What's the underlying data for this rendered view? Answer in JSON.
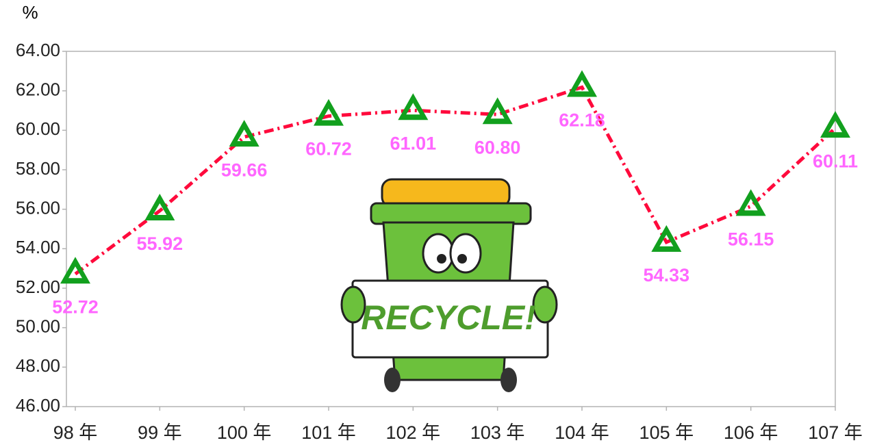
{
  "chart_data": {
    "type": "line",
    "y_label": "%",
    "annotation": "RECYCLE!",
    "categories": [
      "98 年",
      "99 年",
      "100 年",
      "101 年",
      "102 年",
      "103 年",
      "104 年",
      "105 年",
      "106 年",
      "107 年"
    ],
    "values": [
      52.72,
      55.92,
      59.66,
      60.72,
      61.01,
      60.8,
      62.18,
      54.33,
      56.15,
      60.11
    ],
    "value_labels": [
      "52.72",
      "55.92",
      "59.66",
      "60.72",
      "61.01",
      "60.80",
      "62.18",
      "54.33",
      "56.15",
      "60.11"
    ],
    "color": "#ff0a3c",
    "marker_color": "#12a01e",
    "label_color": "#ff66ff",
    "ylim": [
      46,
      64
    ],
    "yticks": [
      {
        "value": 46,
        "label": "46.00"
      },
      {
        "value": 48,
        "label": "48.00"
      },
      {
        "value": 50,
        "label": "50.00"
      },
      {
        "value": 52,
        "label": "52.00"
      },
      {
        "value": 54,
        "label": "54.00"
      },
      {
        "value": 56,
        "label": "56.00"
      },
      {
        "value": 58,
        "label": "58.00"
      },
      {
        "value": 60,
        "label": "60.00"
      },
      {
        "value": 62,
        "label": "62.00"
      },
      {
        "value": 64,
        "label": "64.00"
      }
    ],
    "grid": false
  }
}
